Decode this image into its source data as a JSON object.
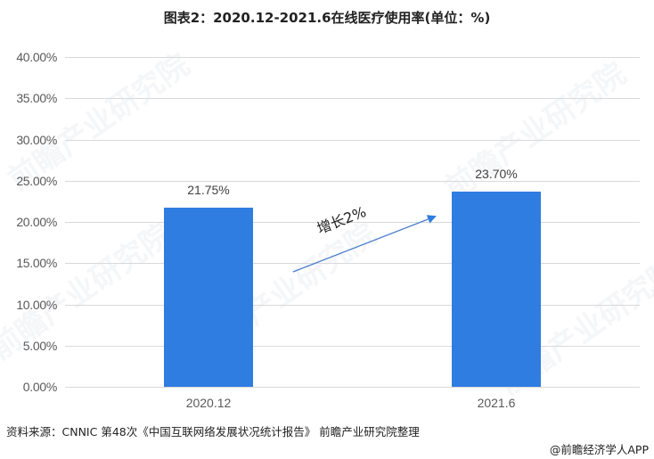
{
  "title": "图表2：2020.12-2021.6在线医疗使用率(单位：%)",
  "chart_data": {
    "type": "bar",
    "title": "图表2：2020.12-2021.6在线医疗使用率(单位：%)",
    "categories": [
      "2020.12",
      "2021.6"
    ],
    "values": [
      21.75,
      23.7
    ],
    "value_labels": [
      "21.75%",
      "23.70%"
    ],
    "xlabel": "",
    "ylabel": "",
    "ylim": [
      0,
      40
    ],
    "yticks": [
      "0.00%",
      "5.00%",
      "10.00%",
      "15.00%",
      "20.00%",
      "25.00%",
      "30.00%",
      "35.00%",
      "40.00%"
    ],
    "grid": true,
    "legend": "none",
    "bar_color": "#2f7de1",
    "annotations": [
      {
        "text": "增长2%",
        "type": "arrow",
        "from": "2020.12",
        "to": "2021.6"
      }
    ]
  },
  "annotation": {
    "text": "增长2%",
    "arrow_color": "#4a7fc9"
  },
  "footer": {
    "source": "资料来源：CNNIC 第48次《中国互联网络发展状况统计报告》 前瞻产业研究院整理",
    "credit": "@前瞻经济学人APP"
  },
  "watermark": {
    "text": "前瞻产业研究院"
  }
}
